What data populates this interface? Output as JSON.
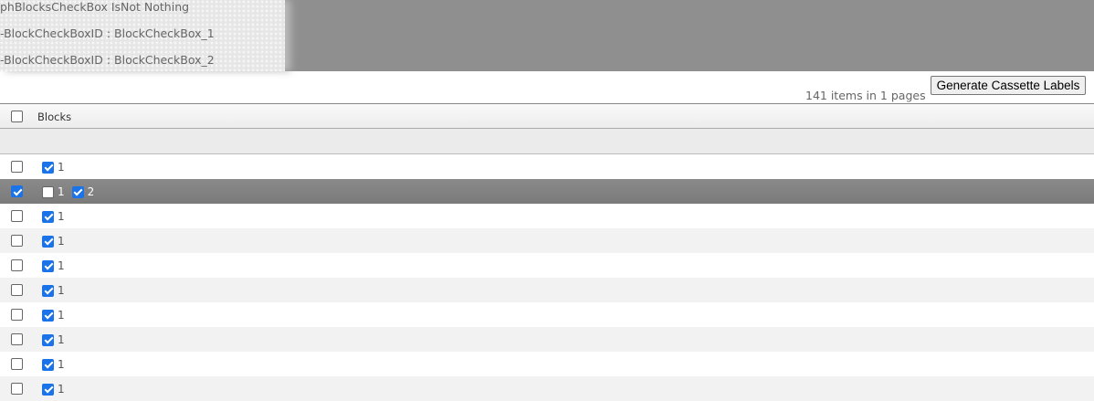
{
  "banner": {
    "lines": [
      "phBlocksCheckBox IsNot Nothing",
      "-BlockCheckBoxID : BlockCheckBox_1",
      "-BlockCheckBoxID : BlockCheckBox_2"
    ]
  },
  "toolbar": {
    "pager_text": "141 items in 1 pages",
    "generate_label": "Generate Cassette Labels"
  },
  "grid": {
    "header": {
      "select_all_checked": false,
      "blocks_label": "Blocks"
    },
    "rows": [
      {
        "selected": false,
        "blocks": [
          {
            "label": "1",
            "checked": true
          }
        ]
      },
      {
        "selected": true,
        "blocks": [
          {
            "label": "1",
            "checked": false
          },
          {
            "label": "2",
            "checked": true
          }
        ]
      },
      {
        "selected": false,
        "blocks": [
          {
            "label": "1",
            "checked": true
          }
        ]
      },
      {
        "selected": false,
        "blocks": [
          {
            "label": "1",
            "checked": true
          }
        ]
      },
      {
        "selected": false,
        "blocks": [
          {
            "label": "1",
            "checked": true
          }
        ]
      },
      {
        "selected": false,
        "blocks": [
          {
            "label": "1",
            "checked": true
          }
        ]
      },
      {
        "selected": false,
        "blocks": [
          {
            "label": "1",
            "checked": true
          }
        ]
      },
      {
        "selected": false,
        "blocks": [
          {
            "label": "1",
            "checked": true
          }
        ]
      },
      {
        "selected": false,
        "blocks": [
          {
            "label": "1",
            "checked": true
          }
        ]
      },
      {
        "selected": false,
        "blocks": [
          {
            "label": "1",
            "checked": true
          }
        ]
      }
    ]
  },
  "colors": {
    "checkbox_accent": "#1a73e8",
    "selected_row": "#808080",
    "alt_row": "#f2f2f2"
  }
}
